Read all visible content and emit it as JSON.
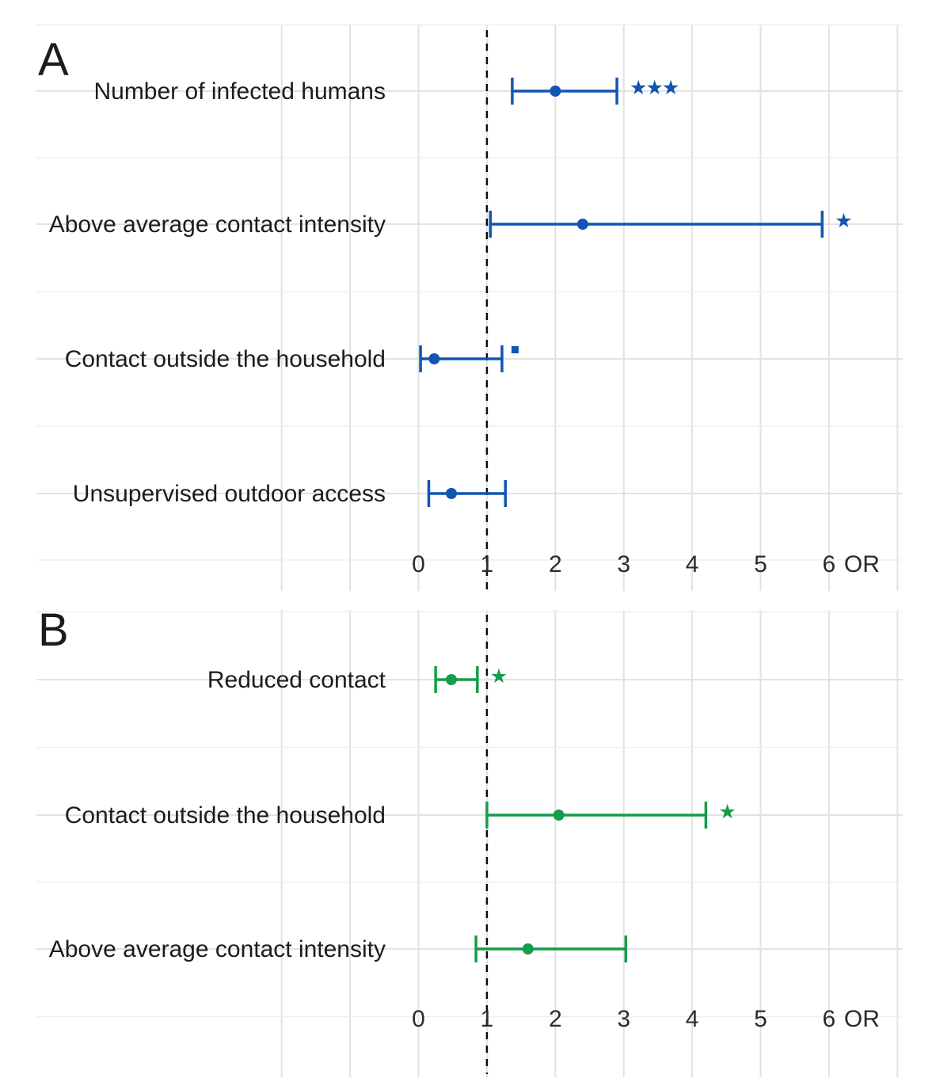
{
  "figure": {
    "background_color": "#ffffff",
    "reference_line_value": 1,
    "or_axis_label": "OR"
  },
  "chart_data": [
    {
      "type": "scatter",
      "subtype": "forest-plot-odds-ratios",
      "panel_label": "A",
      "series_color": "#1056b2",
      "categories": [
        "Number of infected humans",
        "Above average contact intensity",
        "Contact outside the household",
        "Unsupervised outdoor access"
      ],
      "odds_ratio": [
        2.0,
        2.4,
        0.23,
        0.48
      ],
      "ci_low": [
        1.37,
        1.05,
        0.03,
        0.15
      ],
      "ci_high": [
        2.9,
        5.9,
        1.22,
        1.27
      ],
      "significance": [
        "***",
        "*",
        ".",
        ""
      ],
      "xlabel": "OR",
      "x_ticks": [
        "0",
        "1",
        "2",
        "3",
        "4",
        "5",
        "6"
      ],
      "xlim": [
        -5.6,
        7.3
      ],
      "reference_line": 1,
      "grid": true,
      "legend": "none"
    },
    {
      "type": "scatter",
      "subtype": "forest-plot-odds-ratios",
      "panel_label": "B",
      "series_color": "#169c4b",
      "categories": [
        "Reduced contact",
        "Contact outside the household",
        "Above average contact intensity"
      ],
      "odds_ratio": [
        0.48,
        2.05,
        1.6
      ],
      "ci_low": [
        0.25,
        1.0,
        0.84
      ],
      "ci_high": [
        0.86,
        4.2,
        3.03
      ],
      "significance": [
        "*",
        "*",
        ""
      ],
      "xlabel": "OR",
      "x_ticks": [
        "0",
        "1",
        "2",
        "3",
        "4",
        "5",
        "6"
      ],
      "xlim": [
        -5.6,
        7.3
      ],
      "reference_line": 1,
      "grid": true,
      "legend": "none"
    }
  ]
}
